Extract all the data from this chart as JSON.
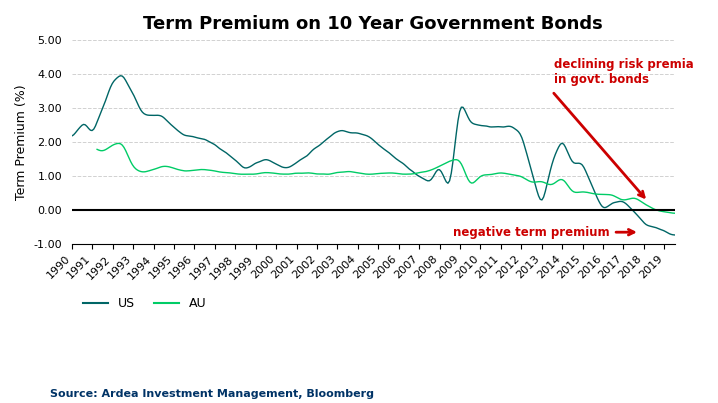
{
  "title": "Term Premium on 10 Year Government Bonds",
  "ylabel": "Term Premium (%)",
  "source": "Source: Ardea Investment Management, Bloomberg",
  "us_color": "#006666",
  "au_color": "#00cc66",
  "zero_line_color": "#000000",
  "annotation_color": "#cc0000",
  "background_color": "#ffffff",
  "grid_color": "#cccccc",
  "ylim": [
    -1.0,
    5.0
  ],
  "yticks": [
    -1.0,
    0.0,
    1.0,
    2.0,
    3.0,
    4.0,
    5.0
  ],
  "title_fontsize": 13,
  "label_fontsize": 9,
  "tick_fontsize": 8
}
